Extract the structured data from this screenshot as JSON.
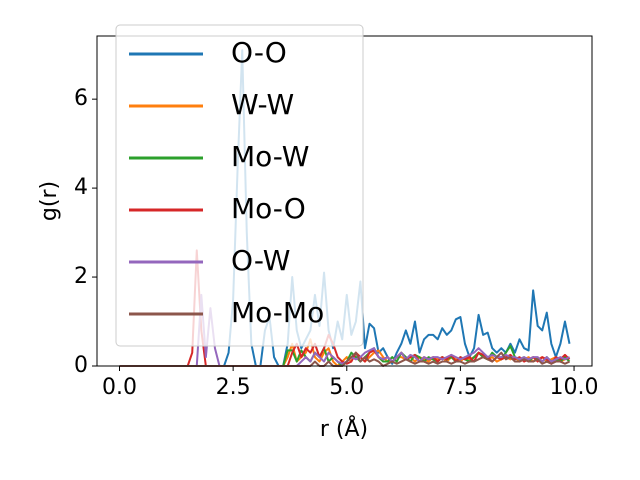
{
  "chart_data": {
    "type": "line",
    "xlabel": "r (Å)",
    "ylabel": "g(r)",
    "x": [
      0,
      0.1,
      0.2,
      0.3,
      0.4,
      0.5,
      0.6,
      0.7,
      0.8,
      0.9,
      1,
      1.1,
      1.2,
      1.3,
      1.4,
      1.5,
      1.6,
      1.7,
      1.8,
      1.9,
      2,
      2.1,
      2.2,
      2.3,
      2.4,
      2.5,
      2.6,
      2.7,
      2.8,
      2.9,
      3,
      3.1,
      3.2,
      3.3,
      3.4,
      3.5,
      3.6,
      3.7,
      3.8,
      3.9,
      4,
      4.1,
      4.2,
      4.3,
      4.4,
      4.5,
      4.6,
      4.7,
      4.8,
      4.9,
      5,
      5.1,
      5.2,
      5.3,
      5.4,
      5.5,
      5.6,
      5.7,
      5.8,
      5.9,
      6,
      6.1,
      6.2,
      6.3,
      6.4,
      6.5,
      6.6,
      6.7,
      6.8,
      6.9,
      7,
      7.1,
      7.2,
      7.3,
      7.4,
      7.5,
      7.6,
      7.7,
      7.8,
      7.9,
      8,
      8.1,
      8.2,
      8.3,
      8.4,
      8.5,
      8.6,
      8.7,
      8.8,
      8.9,
      9,
      9.1,
      9.2,
      9.3,
      9.4,
      9.5,
      9.6,
      9.7,
      9.8,
      9.9
    ],
    "xlim": [
      -0.495,
      10.395
    ],
    "ylim": [
      0,
      7.42
    ],
    "xticks": [
      {
        "value": 0,
        "label": "0.0"
      },
      {
        "value": 2.5,
        "label": "2.5"
      },
      {
        "value": 5,
        "label": "5.0"
      },
      {
        "value": 7.5,
        "label": "7.5"
      },
      {
        "value": 10,
        "label": "10.0"
      }
    ],
    "yticks": [
      0,
      2,
      4,
      6
    ],
    "legend": "upper left",
    "series": [
      {
        "name": "O-O",
        "color": "#1f77b4",
        "values": [
          0,
          0,
          0,
          0,
          0,
          0,
          0,
          0,
          0,
          0,
          0,
          0,
          0,
          0,
          0,
          0,
          0,
          0,
          0,
          0,
          0,
          0,
          0,
          0,
          0.3,
          1.5,
          4.5,
          7.1,
          3.0,
          0.5,
          0,
          0,
          0.8,
          1.1,
          0.2,
          0,
          0,
          0.5,
          2.0,
          0.8,
          0.4,
          0.6,
          0.8,
          1.6,
          0.9,
          2.1,
          0.8,
          0.4,
          1.0,
          0.6,
          1.6,
          0.7,
          1.0,
          1.9,
          0.4,
          0.95,
          0.85,
          0.3,
          0.4,
          0.2,
          0.05,
          0.3,
          0.5,
          0.8,
          0.5,
          1.0,
          0.3,
          0.6,
          0.7,
          0.7,
          0.6,
          0.85,
          0.7,
          0.8,
          1.05,
          1.1,
          0.5,
          0.2,
          0.4,
          1.15,
          0.7,
          0.75,
          0.4,
          0.3,
          0.4,
          0.3,
          0.5,
          0.3,
          0.6,
          0.4,
          0.35,
          1.7,
          0.9,
          0.8,
          1.2,
          0.5,
          0.2,
          0.5,
          1.0,
          0.5
        ]
      },
      {
        "name": "W-W",
        "color": "#ff7f0e",
        "values": [
          0,
          0,
          0,
          0,
          0,
          0,
          0,
          0,
          0,
          0,
          0,
          0,
          0,
          0,
          0,
          0,
          0,
          0,
          0,
          0,
          0,
          0,
          0,
          0,
          0,
          0,
          0,
          0,
          0,
          0,
          0,
          0,
          0,
          0,
          0,
          0,
          0,
          0.2,
          0.5,
          0.1,
          0.2,
          0.3,
          0.6,
          0.2,
          0.1,
          0.3,
          0.4,
          0.1,
          0,
          0.1,
          0.2,
          0.1,
          0.3,
          0.2,
          0.1,
          0.2,
          0.3,
          0.35,
          0.2,
          0.1,
          0.1,
          0.2,
          0.2,
          0.15,
          0.2,
          0.1,
          0.2,
          0.15,
          0.1,
          0.2,
          0.15,
          0.2,
          0.1,
          0.2,
          0.15,
          0.1,
          0.2,
          0.15,
          0.2,
          0.3,
          0.2,
          0.15,
          0.2,
          0.1,
          0.15,
          0.2,
          0.15,
          0.2,
          0.1,
          0.15,
          0.2,
          0.1,
          0.15,
          0.2,
          0.1,
          0.15,
          0.2,
          0.1,
          0.15,
          0.2
        ]
      },
      {
        "name": "Mo-W",
        "color": "#2ca02c",
        "values": [
          0,
          0,
          0,
          0,
          0,
          0,
          0,
          0,
          0,
          0,
          0,
          0,
          0,
          0,
          0,
          0,
          0,
          0,
          0,
          0,
          0,
          0,
          0,
          0,
          0,
          0,
          0,
          0,
          0,
          0,
          0,
          0,
          0,
          0,
          0,
          0,
          0,
          0.35,
          0.35,
          0.1,
          0.35,
          0.2,
          0.1,
          0.3,
          0.2,
          0.4,
          0.1,
          0.2,
          0.1,
          0,
          0.1,
          0.3,
          0.2,
          0.1,
          0.2,
          0.3,
          0.4,
          0.2,
          0.1,
          0.1,
          0.2,
          0.1,
          0.3,
          0.2,
          0.1,
          0.25,
          0.2,
          0.1,
          0.2,
          0.15,
          0.1,
          0.2,
          0.15,
          0.2,
          0.1,
          0.2,
          0.15,
          0.1,
          0.2,
          0.3,
          0.2,
          0.15,
          0.3,
          0.2,
          0.15,
          0.3,
          0.45,
          0.2,
          0.15,
          0.2,
          0.1,
          0.2,
          0.15,
          0.1,
          0.2,
          0.1,
          0.15,
          0.1,
          0.2,
          0.1
        ]
      },
      {
        "name": "Mo-O",
        "color": "#d62728",
        "values": [
          0,
          0,
          0,
          0,
          0,
          0,
          0,
          0,
          0,
          0,
          0,
          0,
          0,
          0,
          0,
          0,
          0.3,
          2.6,
          0.8,
          0,
          0,
          0,
          0,
          0,
          0,
          0,
          0,
          0,
          0,
          0,
          0,
          0,
          0,
          0,
          0,
          0,
          0,
          0,
          0.3,
          0.5,
          0.2,
          0.4,
          0.3,
          0.5,
          0.2,
          0.4,
          0.7,
          0.5,
          0.2,
          0.1,
          0.05,
          0.1,
          0.3,
          0.2,
          0.1,
          0.3,
          0.35,
          0.2,
          0.15,
          0.2,
          0.1,
          0.2,
          0.3,
          0.15,
          0.2,
          0.25,
          0.1,
          0.2,
          0.15,
          0.2,
          0.1,
          0.2,
          0.15,
          0.25,
          0.1,
          0.2,
          0.15,
          0.2,
          0.1,
          0.3,
          0.25,
          0.2,
          0.1,
          0.2,
          0.15,
          0.2,
          0.25,
          0.15,
          0.2,
          0.1,
          0.15,
          0.2,
          0.1,
          0.2,
          0.15,
          0.05,
          0.2,
          0.15,
          0.25,
          0.15
        ]
      },
      {
        "name": "O-W",
        "color": "#9467bd",
        "values": [
          0,
          0,
          0,
          0,
          0,
          0,
          0,
          0,
          0,
          0,
          0,
          0,
          0,
          0,
          0,
          0,
          0,
          0,
          1.6,
          0.2,
          1.3,
          0.4,
          0,
          0,
          0,
          0,
          0,
          0,
          0,
          0,
          0,
          0,
          0,
          0,
          0,
          0,
          0,
          0,
          0,
          0,
          0.1,
          0.2,
          0.1,
          0.3,
          0.2,
          0.1,
          0.3,
          0.2,
          0.1,
          0.05,
          0.1,
          0.2,
          0.15,
          0.2,
          0.3,
          0.35,
          0.4,
          0.2,
          0.15,
          0.2,
          0.1,
          0.2,
          0.3,
          0.15,
          0.25,
          0.2,
          0.1,
          0.2,
          0.15,
          0.2,
          0.2,
          0.15,
          0.2,
          0.25,
          0.2,
          0.15,
          0.2,
          0.25,
          0.3,
          0.4,
          0.3,
          0.2,
          0.25,
          0.2,
          0.2,
          0.25,
          0.2,
          0.2,
          0.15,
          0.2,
          0.15,
          0.2,
          0.2,
          0.1,
          0.2,
          0.1,
          0.15,
          0.2,
          0.15,
          0.2
        ]
      },
      {
        "name": "Mo-Mo",
        "color": "#8c564b",
        "values": [
          0,
          0,
          0,
          0,
          0,
          0,
          0,
          0,
          0,
          0,
          0,
          0,
          0,
          0,
          0,
          0,
          0,
          0,
          0,
          0,
          0,
          0,
          0,
          0,
          0,
          0,
          0,
          0,
          0,
          0,
          0,
          0,
          0,
          0,
          0,
          0,
          0,
          0,
          0,
          0,
          0,
          0,
          0,
          0.1,
          0,
          0,
          0.1,
          0,
          0,
          0,
          0.1,
          0.2,
          0.3,
          0.1,
          0.2,
          0.1,
          0.15,
          0.1,
          0,
          0.05,
          0.1,
          0.05,
          0.1,
          0.15,
          0.1,
          0.05,
          0.1,
          0.1,
          0.05,
          0.1,
          0.05,
          0.1,
          0.1,
          0.05,
          0.1,
          0.1,
          0.05,
          0.1,
          0.1,
          0.15,
          0.2,
          0.15,
          0.1,
          0.2,
          0.3,
          0.15,
          0.2,
          0.1,
          0.1,
          0.15,
          0.1,
          0.1,
          0.15,
          0.05,
          0.1,
          0.05,
          0.1,
          0.1,
          0.05,
          0.1
        ]
      }
    ]
  }
}
